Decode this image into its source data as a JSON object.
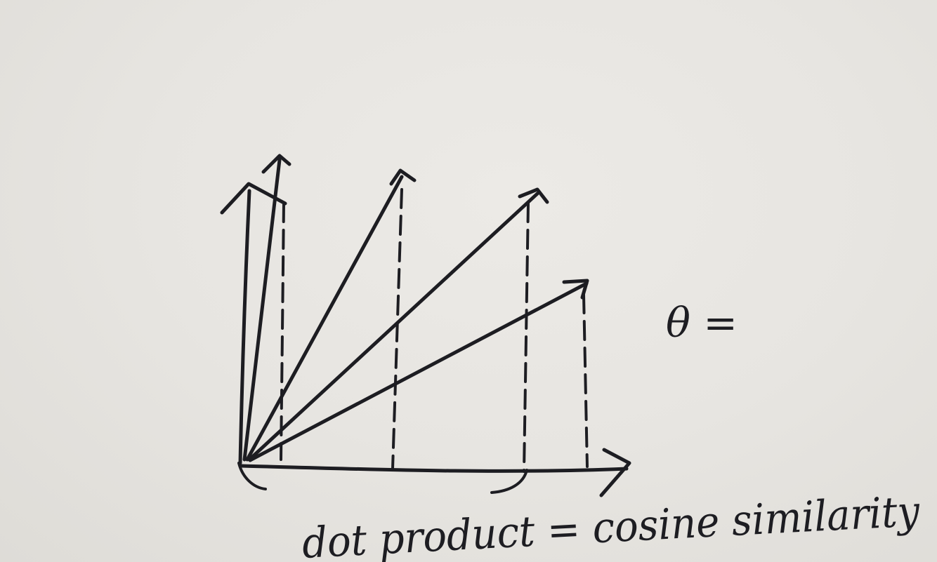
{
  "diagram": {
    "angle_label": "θ =",
    "caption": "dot product = cosine similarity",
    "vector_count": 5,
    "colors": {
      "ink": "#1d1d22",
      "paper": "#e6e4df"
    }
  }
}
